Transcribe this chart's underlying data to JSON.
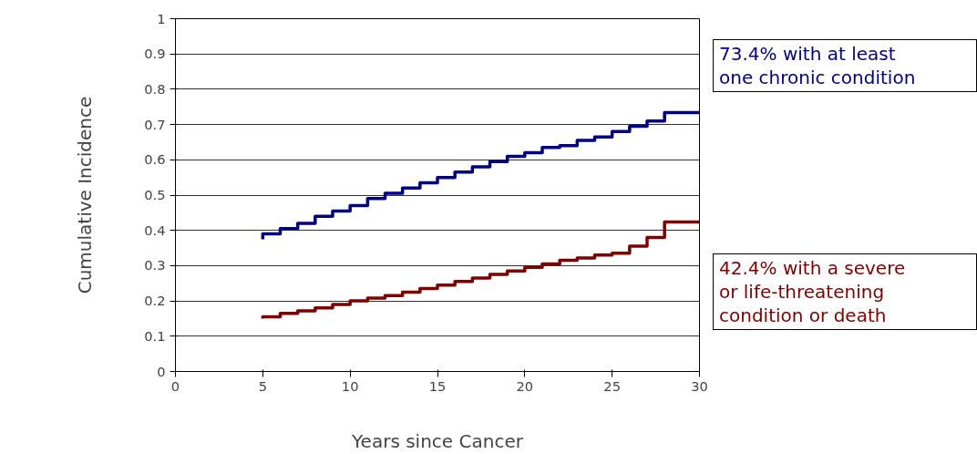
{
  "chart_data": {
    "type": "step",
    "xlabel": "Years since Cancer",
    "ylabel": "Cumulative Incidence",
    "xlim": [
      0,
      30
    ],
    "ylim": [
      0,
      1
    ],
    "xticks": [
      0,
      5,
      10,
      15,
      20,
      25,
      30
    ],
    "yticks": [
      0,
      0.1,
      0.2,
      0.3,
      0.4,
      0.5,
      0.6,
      0.7,
      0.8,
      0.9,
      1
    ],
    "grid": "y",
    "line_style": "solid",
    "marker": "none",
    "series": [
      {
        "color": "#000080",
        "x": [
          5,
          5,
          6,
          7,
          8,
          9,
          10,
          11,
          12,
          13,
          14,
          15,
          16,
          17,
          18,
          19,
          20,
          21,
          22,
          23,
          24,
          25,
          26,
          27,
          28,
          30
        ],
        "values": [
          0.375,
          0.39,
          0.405,
          0.42,
          0.44,
          0.455,
          0.47,
          0.49,
          0.505,
          0.52,
          0.535,
          0.55,
          0.565,
          0.58,
          0.595,
          0.61,
          0.62,
          0.635,
          0.64,
          0.655,
          0.665,
          0.68,
          0.695,
          0.71,
          0.734,
          0.734
        ]
      },
      {
        "color": "#800000",
        "x": [
          5,
          5,
          6,
          7,
          8,
          9,
          10,
          11,
          12,
          13,
          14,
          15,
          16,
          17,
          18,
          19,
          20,
          21,
          22,
          23,
          24,
          25,
          26,
          27,
          28,
          30
        ],
        "values": [
          0.15,
          0.155,
          0.165,
          0.172,
          0.18,
          0.19,
          0.2,
          0.208,
          0.215,
          0.225,
          0.235,
          0.245,
          0.255,
          0.265,
          0.275,
          0.285,
          0.295,
          0.305,
          0.315,
          0.322,
          0.33,
          0.335,
          0.355,
          0.38,
          0.424,
          0.424
        ]
      }
    ],
    "annotations": [
      "73.4% with at least\none chronic condition",
      "42.4% with a severe\nor life-threatening\ncondition or death"
    ]
  }
}
